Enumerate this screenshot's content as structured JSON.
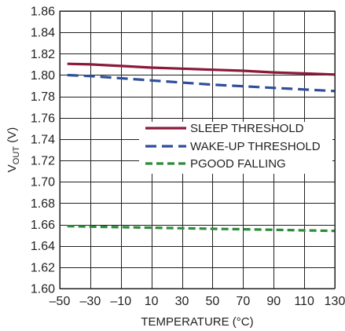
{
  "chart_data": {
    "type": "line",
    "xlabel": "TEMPERATURE (°C)",
    "ylabel": "V",
    "ylabel_subscript": "OUT",
    "ylabel_suffix": " (V)",
    "xlim": [
      -50,
      130
    ],
    "ylim": [
      1.6,
      1.86
    ],
    "x_ticks": [
      -50,
      -30,
      -10,
      10,
      30,
      50,
      70,
      90,
      110,
      130
    ],
    "x_tick_labels": [
      "–50",
      "–30",
      "–10",
      "10",
      "30",
      "50",
      "70",
      "90",
      "110",
      "130"
    ],
    "y_ticks": [
      1.6,
      1.62,
      1.64,
      1.66,
      1.68,
      1.7,
      1.72,
      1.74,
      1.76,
      1.78,
      1.8,
      1.82,
      1.84,
      1.86
    ],
    "y_tick_labels": [
      "1.60",
      "1.62",
      "1.64",
      "1.66",
      "1.68",
      "1.70",
      "1.72",
      "1.74",
      "1.76",
      "1.78",
      "1.80",
      "1.82",
      "1.84",
      "1.86"
    ],
    "grid": true,
    "legend_position": "center-right",
    "series": [
      {
        "name": "SLEEP THRESHOLD",
        "color": "#8b1a3a",
        "style": "solid",
        "x": [
          -45,
          -30,
          -10,
          10,
          30,
          50,
          70,
          90,
          110,
          130
        ],
        "y": [
          1.8105,
          1.81,
          1.8085,
          1.807,
          1.806,
          1.805,
          1.804,
          1.8025,
          1.8015,
          1.8005
        ]
      },
      {
        "name": "WAKE-UP THRESHOLD",
        "color": "#2e4f9c",
        "style": "dashed",
        "x": [
          -45,
          -30,
          -10,
          10,
          30,
          50,
          70,
          90,
          110,
          130
        ],
        "y": [
          1.8,
          1.799,
          1.797,
          1.795,
          1.793,
          1.791,
          1.7895,
          1.788,
          1.7865,
          1.785
        ]
      },
      {
        "name": "PGOOD FALLING",
        "color": "#2e8b3a",
        "style": "dashed",
        "x": [
          -45,
          -30,
          -10,
          10,
          30,
          50,
          70,
          90,
          110,
          130
        ],
        "y": [
          1.6585,
          1.658,
          1.6575,
          1.657,
          1.6565,
          1.656,
          1.6555,
          1.655,
          1.6545,
          1.654
        ]
      }
    ]
  }
}
